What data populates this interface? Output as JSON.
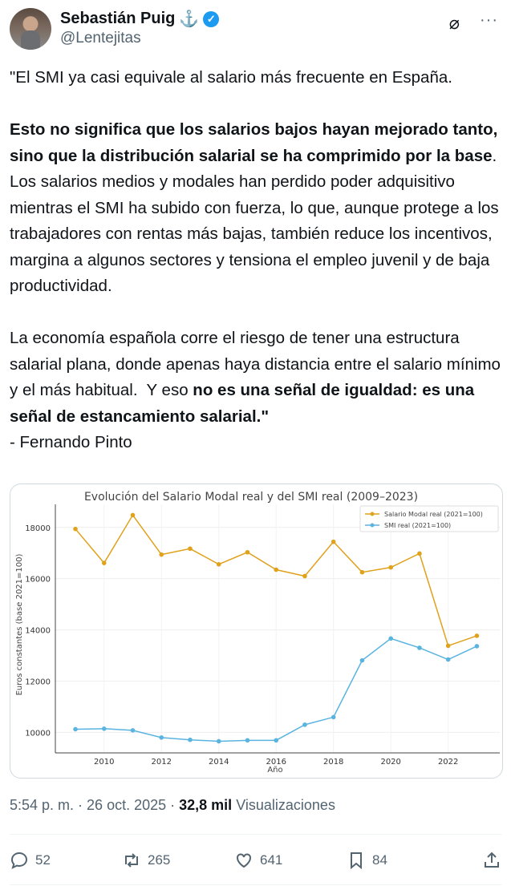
{
  "user": {
    "name": "Sebastián Puig",
    "emoji": "⚓",
    "handle": "@Lentejitas"
  },
  "tweet": {
    "paragraphs": [
      [
        {
          "t": "\"El SMI ya casi equivale al salario más frecuente en España.",
          "b": false
        }
      ],
      [
        {
          "t": "Esto no significa que los salarios bajos hayan mejorado tanto, sino que la distribución salarial se ha comprimido por la base",
          "b": true
        },
        {
          "t": ". Los salarios medios y modales han perdido poder adquisitivo mientras el SMI ha subido con fuerza, lo que, aunque protege a los trabajadores con rentas más bajas, también reduce los incentivos, margina a algunos sectores y tensiona el empleo juvenil y de baja productividad.",
          "b": false
        }
      ],
      [
        {
          "t": "La economía española corre el riesgo de tener una estructura salarial plana, donde apenas haya distancia entre el salario mínimo y el más habitual.  Y eso ",
          "b": false
        },
        {
          "t": "no es una señal de igualdad: es una señal de estancamiento salarial.\"",
          "b": true
        },
        {
          "t": "\n- Fernando Pinto",
          "b": false
        }
      ]
    ]
  },
  "meta": {
    "time": "5:54 p. m.",
    "date": "26 oct. 2025",
    "views": "32,8 mil",
    "views_label": "Visualizaciones"
  },
  "actions": {
    "replies": "52",
    "reposts": "265",
    "likes": "641",
    "bookmarks": "84"
  },
  "colors": {
    "modal": "#e0a11b",
    "smi": "#5ab4e0",
    "verified": "#1d9bf0"
  },
  "chart_data": {
    "type": "line",
    "title": "Evolución del Salario Modal real y del SMI real (2009–2023)",
    "xlabel": "Año",
    "ylabel": "Euros constantes (base 2021=100)",
    "x": [
      2009,
      2010,
      2011,
      2012,
      2013,
      2014,
      2015,
      2016,
      2017,
      2018,
      2019,
      2020,
      2021,
      2022,
      2023
    ],
    "xticks": [
      2010,
      2012,
      2014,
      2016,
      2018,
      2020,
      2022
    ],
    "yticks": [
      10000,
      12000,
      14000,
      16000,
      18000
    ],
    "ylim": [
      9200,
      18900
    ],
    "xlim": [
      2008.3,
      2023.8
    ],
    "grid": true,
    "legend": "top-right",
    "series": [
      {
        "name": "Salario Modal real (2021=100)",
        "color": "#e0a11b",
        "values": [
          17940,
          16610,
          18480,
          16940,
          17170,
          16560,
          17030,
          16350,
          16100,
          17440,
          16250,
          16440,
          16980,
          13380,
          13770
        ]
      },
      {
        "name": "SMI real (2021=100)",
        "color": "#5ab4e0",
        "values": [
          10125,
          10145,
          10080,
          9800,
          9710,
          9655,
          9690,
          9690,
          10300,
          10595,
          12810,
          13665,
          13300,
          12845,
          13365
        ]
      }
    ]
  }
}
